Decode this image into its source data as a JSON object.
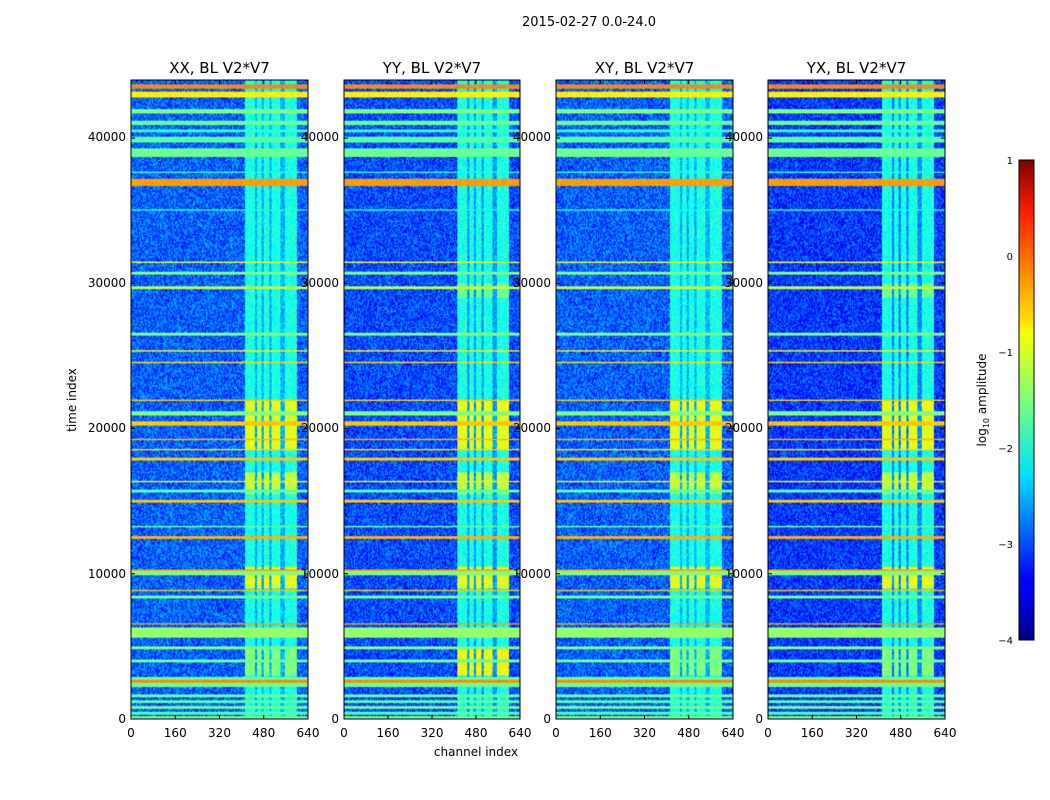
{
  "suptitle": "2015-02-27 0.0-24.0",
  "chart_data": [
    {
      "type": "heatmap",
      "title": "XX, BL V2*V7",
      "xlabel": "channel index",
      "ylabel": "time index",
      "xlim": [
        0,
        640
      ],
      "ylim": [
        0,
        44000
      ],
      "xticks": [
        "0",
        "160",
        "320",
        "480",
        "640"
      ],
      "yticks": [
        "0",
        "10000",
        "20000",
        "30000",
        "40000"
      ],
      "rfi_channel_range": [
        410,
        600
      ],
      "noise_log10_amplitude": -2.9
    },
    {
      "type": "heatmap",
      "title": "YY, BL V2*V7",
      "xlabel": "channel index",
      "ylabel": "",
      "xlim": [
        0,
        640
      ],
      "ylim": [
        0,
        44000
      ],
      "xticks": [
        "0",
        "160",
        "320",
        "480",
        "640"
      ],
      "yticks": [
        "0",
        "10000",
        "20000",
        "30000",
        "40000"
      ],
      "rfi_channel_range": [
        410,
        600
      ],
      "noise_log10_amplitude": -3.0
    },
    {
      "type": "heatmap",
      "title": "XY, BL V2*V7",
      "xlabel": "channel index",
      "ylabel": "",
      "xlim": [
        0,
        640
      ],
      "ylim": [
        0,
        44000
      ],
      "xticks": [
        "0",
        "160",
        "320",
        "480",
        "640"
      ],
      "yticks": [
        "0",
        "10000",
        "20000",
        "30000",
        "40000"
      ],
      "rfi_channel_range": [
        410,
        600
      ],
      "noise_log10_amplitude": -2.9
    },
    {
      "type": "heatmap",
      "title": "YX, BL V2*V7",
      "xlabel": "channel index",
      "ylabel": "",
      "xlim": [
        0,
        640
      ],
      "ylim": [
        0,
        44000
      ],
      "xticks": [
        "0",
        "160",
        "320",
        "480",
        "640"
      ],
      "yticks": [
        "0",
        "10000",
        "20000",
        "30000",
        "40000"
      ],
      "rfi_channel_range": [
        410,
        600
      ],
      "noise_log10_amplitude": -3.1
    }
  ],
  "colorbar": {
    "label": "log10 amplitude",
    "label_main": "log",
    "label_sub": "10",
    "label_rest": " amplitude",
    "colormap": "jet",
    "range": [
      -4,
      1
    ],
    "ticks": [
      "1",
      "0",
      "−1",
      "−2",
      "−3",
      "−4"
    ]
  },
  "xlabel_shared": "channel index"
}
